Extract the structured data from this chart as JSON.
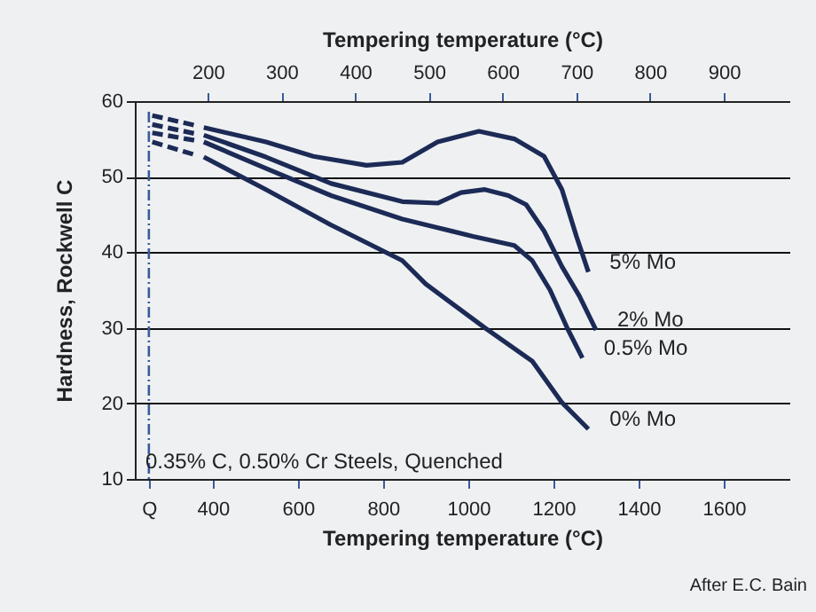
{
  "chart_data": {
    "type": "line",
    "xlabel": "Tempering temperature (°C)",
    "x2label": "Tempering temperature (°C)",
    "ylabel": "Hardness, Rockwell C",
    "xlim": [
      217,
      1754
    ],
    "xticks": [
      {
        "value": 250,
        "label": "Q"
      },
      400,
      600,
      800,
      1000,
      1200,
      1400,
      1600
    ],
    "x2lim": [
      101,
      989
    ],
    "x2ticks": [
      200,
      300,
      400,
      500,
      600,
      700,
      800,
      900
    ],
    "ylim": [
      10,
      60
    ],
    "yticks": [
      10,
      20,
      30,
      40,
      50,
      60
    ],
    "grid": "y",
    "marker": "none",
    "series": [
      {
        "name": "5% Mo",
        "color": "#1c2a56",
        "line_style": "solid",
        "x": [
          379,
          525,
          636,
          761,
          845,
          928,
          1025,
          1108,
          1178,
          1220,
          1254,
          1282
        ],
        "values": [
          56.5,
          54.6,
          52.7,
          51.5,
          51.9,
          54.6,
          56.0,
          55.0,
          52.7,
          48.3,
          42.1,
          37.4
        ]
      },
      {
        "name": "2% Mo",
        "color": "#1c2a56",
        "line_style": "solid",
        "x": [
          379,
          525,
          678,
          845,
          928,
          983,
          1039,
          1094,
          1136,
          1178,
          1220,
          1261,
          1300
        ],
        "values": [
          55.5,
          52.6,
          49.1,
          46.7,
          46.5,
          47.9,
          48.3,
          47.5,
          46.3,
          42.8,
          38.1,
          34.2,
          29.7
        ]
      },
      {
        "name": "0.5% Mo",
        "color": "#1c2a56",
        "line_style": "solid",
        "x": [
          379,
          525,
          678,
          845,
          1011,
          1108,
          1150,
          1192,
          1233,
          1268
        ],
        "values": [
          54.6,
          51.1,
          47.5,
          44.4,
          42.1,
          40.9,
          38.9,
          35.0,
          29.9,
          26.0
        ]
      },
      {
        "name": "0% Mo",
        "color": "#1c2a56",
        "line_style": "solid",
        "x": [
          379,
          525,
          678,
          845,
          900,
          1039,
          1150,
          1220,
          1282
        ],
        "values": [
          52.6,
          48.3,
          43.6,
          38.9,
          35.8,
          30.0,
          25.6,
          20.1,
          16.6
        ]
      },
      {
        "color": "#1c2a56",
        "line_style": "dashed",
        "x": [
          258,
          358
        ],
        "values": [
          58.1,
          56.8
        ]
      },
      {
        "color": "#1c2a56",
        "line_style": "dashed",
        "x": [
          258,
          358
        ],
        "values": [
          56.9,
          55.7
        ]
      },
      {
        "color": "#1c2a56",
        "line_style": "dashed",
        "x": [
          258,
          358
        ],
        "values": [
          55.8,
          54.8
        ]
      },
      {
        "color": "#1c2a56",
        "line_style": "dashed",
        "x": [
          258,
          358
        ],
        "values": [
          54.6,
          52.9
        ]
      }
    ],
    "ref_lines": [
      {
        "axis": "x",
        "value": 250,
        "color": "#3a5a9a",
        "line_style": "dashed"
      }
    ],
    "annotations": [
      "0.35% C, 0.50% Cr Steels, Quenched",
      "After E.C. Bain"
    ]
  }
}
